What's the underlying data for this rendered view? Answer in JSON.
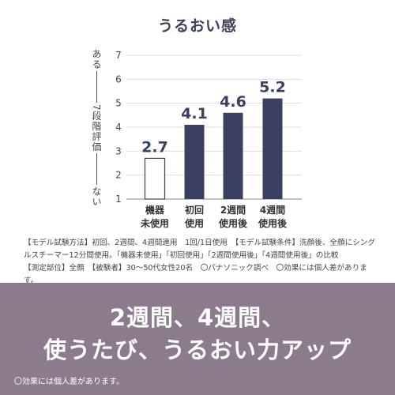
{
  "chart_data": {
    "type": "bar",
    "title": "うるおい感",
    "categories": [
      "機器\n未使用",
      "初回\n使用",
      "2週間\n使用後",
      "4週間\n使用後"
    ],
    "values": [
      2.7,
      4.1,
      4.6,
      5.2
    ],
    "ylim": [
      1,
      7
    ],
    "yticks": [
      1,
      2,
      3,
      4,
      5,
      6,
      7
    ],
    "ylabel_top": "ある",
    "ylabel_middle": "7段階評価",
    "ylabel_bottom": "ない",
    "grid": true,
    "colors": {
      "bar": "#3a4060",
      "baseline_bar_fill": "#ffffff",
      "baseline_bar_stroke": "#3a4060"
    }
  },
  "note_lines": [
    "【モデル試験方法】初回、2週間、4週間連用　1回/1日使用　【モデル試験条件】洗顔後、全顔にシング",
    "ルスチーマー12分間使用。「機器未使用」「初回使用」「2週間使用後」「4週間使用後」の比較",
    "【測定部位】全顔　【被験者】30～50代女性20名　〇パナソニック調べ　〇効果には個人差があります。"
  ],
  "headline_lines": [
    "2週間、4週間、",
    "使うたび、うるおい力アップ"
  ],
  "footnote": "〇効果には個人差があります。",
  "colors": {
    "banner": "#8c7b8c",
    "title": "#3a4258"
  }
}
